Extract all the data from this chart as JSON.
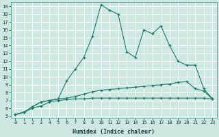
{
  "xlabel": "Humidex (Indice chaleur)",
  "bg_color": "#cce8e0",
  "grid_color": "#ffffff",
  "line_color": "#1a7a6a",
  "xlim": [
    -0.5,
    23.5
  ],
  "ylim": [
    4.8,
    19.5
  ],
  "yticks": [
    5,
    6,
    7,
    8,
    9,
    10,
    11,
    12,
    13,
    14,
    15,
    16,
    17,
    18,
    19
  ],
  "xticks": [
    0,
    1,
    2,
    3,
    4,
    5,
    6,
    7,
    8,
    9,
    10,
    11,
    12,
    13,
    14,
    15,
    16,
    17,
    18,
    19,
    20,
    21,
    22,
    23
  ],
  "line1_x": [
    0,
    1,
    2,
    3,
    4,
    5,
    6,
    7,
    8,
    9,
    10,
    11,
    12,
    13,
    14,
    15,
    16,
    17,
    18,
    19,
    20,
    21,
    22,
    23
  ],
  "line1_y": [
    5.2,
    5.5,
    6.0,
    6.3,
    6.8,
    7.0,
    7.1,
    7.2,
    7.2,
    7.3,
    7.3,
    7.3,
    7.3,
    7.3,
    7.3,
    7.3,
    7.3,
    7.3,
    7.3,
    7.3,
    7.3,
    7.3,
    7.3,
    7.2
  ],
  "line2_x": [
    0,
    1,
    2,
    3,
    4,
    5,
    6,
    7,
    8,
    9,
    10,
    11,
    12,
    13,
    14,
    15,
    16,
    17,
    18,
    19,
    20,
    21,
    22,
    23
  ],
  "line2_y": [
    5.2,
    5.5,
    6.2,
    6.8,
    7.0,
    7.2,
    7.3,
    7.5,
    7.8,
    8.1,
    8.3,
    8.4,
    8.5,
    8.6,
    8.7,
    8.8,
    8.9,
    9.0,
    9.1,
    9.3,
    9.4,
    8.5,
    8.2,
    7.2
  ],
  "line3_x": [
    0,
    1,
    2,
    3,
    4,
    5,
    6,
    7,
    8,
    9,
    10,
    11,
    12,
    13,
    14,
    15,
    16,
    17,
    18,
    19,
    20,
    21,
    22,
    23
  ],
  "line3_y": [
    5.2,
    5.5,
    6.2,
    6.8,
    7.0,
    7.2,
    9.5,
    11.0,
    12.5,
    15.2,
    19.2,
    18.5,
    18.0,
    13.2,
    12.5,
    16.0,
    15.5,
    16.5,
    14.0,
    12.0,
    11.5,
    11.5,
    8.5,
    7.2
  ]
}
